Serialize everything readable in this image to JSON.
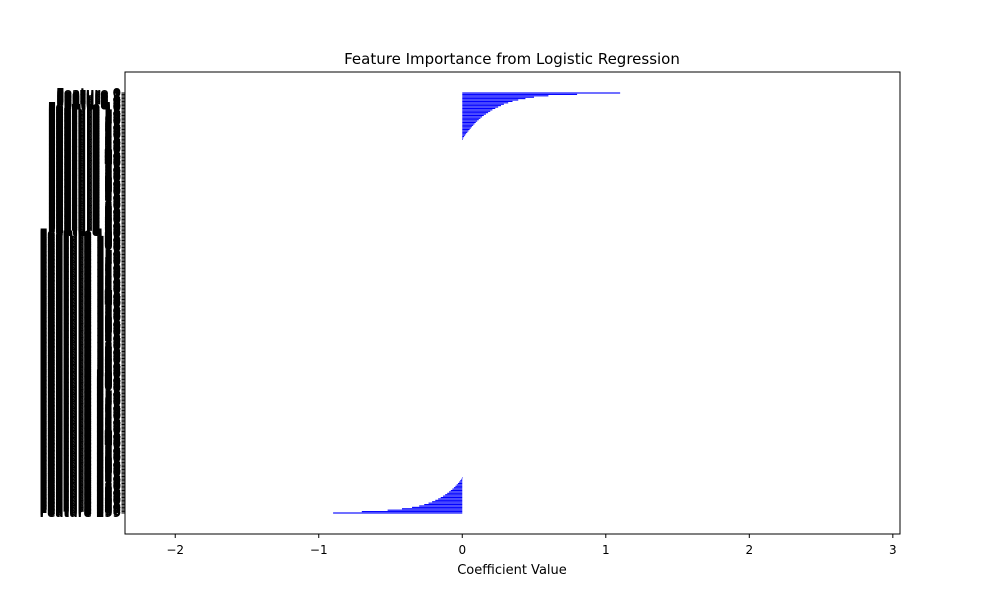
{
  "chart_data": {
    "type": "bar",
    "orientation": "horizontal",
    "title": "Feature Importance from Logistic Regression",
    "xlabel": "Coefficient Value",
    "ylabel": "",
    "xlim": [
      -2.35,
      3.05
    ],
    "xticks": [
      -2,
      -1,
      0,
      1,
      2,
      3
    ],
    "xtick_labels": [
      "−2",
      "−1",
      "0",
      "1",
      "2",
      "3"
    ],
    "category_count": 300,
    "category_label_prefix": "Feature ",
    "bar_color": "#0000ff",
    "grid": false,
    "legend": "none",
    "positive_coefficients_sorted_desc": [
      1.1,
      0.8,
      0.6,
      0.5,
      0.44,
      0.39,
      0.35,
      0.32,
      0.29,
      0.27,
      0.25,
      0.23,
      0.21,
      0.195,
      0.18,
      0.165,
      0.15,
      0.138,
      0.126,
      0.115,
      0.104,
      0.094,
      0.085,
      0.076,
      0.067,
      0.059,
      0.051,
      0.043,
      0.035,
      0.027,
      0.02,
      0.013,
      0.007,
      0.002
    ],
    "negative_coefficients_sorted_desc": [
      -0.002,
      -0.007,
      -0.014,
      -0.022,
      -0.03,
      -0.039,
      -0.048,
      -0.058,
      -0.069,
      -0.08,
      -0.092,
      -0.105,
      -0.119,
      -0.134,
      -0.15,
      -0.168,
      -0.188,
      -0.21,
      -0.235,
      -0.265,
      -0.3,
      -0.35,
      -0.42,
      -0.52,
      -0.7,
      -0.9
    ],
    "zero_coefficient_count": 240
  }
}
